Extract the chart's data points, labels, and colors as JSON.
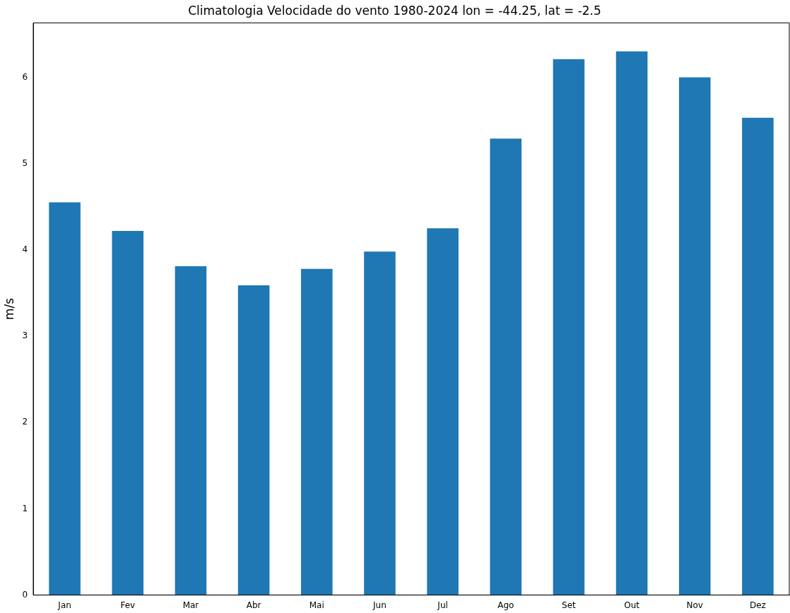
{
  "chart_data": {
    "type": "bar",
    "title": "Climatologia Velocidade do vento 1980-2024 lon = -44.25, lat = -2.5",
    "ylabel": "m/s",
    "categories": [
      "Jan",
      "Fev",
      "Mar",
      "Abr",
      "Mai",
      "Jun",
      "Jul",
      "Ago",
      "Set",
      "Out",
      "Nov",
      "Dez"
    ],
    "values": [
      4.55,
      4.22,
      3.81,
      3.59,
      3.78,
      3.98,
      4.25,
      5.29,
      6.21,
      6.3,
      6.0,
      5.53
    ],
    "color": "#1f77b4",
    "ylim": [
      0,
      6.63
    ],
    "yticks": [
      0,
      1,
      2,
      3,
      4,
      5,
      6
    ],
    "grid": false,
    "legend": false
  }
}
